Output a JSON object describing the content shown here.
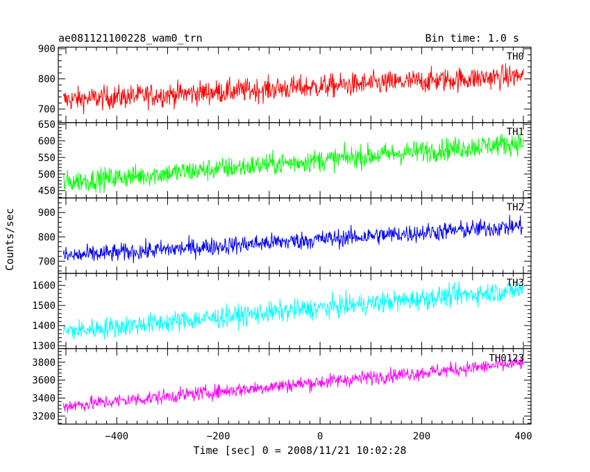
{
  "header": {
    "title": "ae081121100228_wam0_trn",
    "bin_time": "Bin time: 1.0 s"
  },
  "chart_data": {
    "type": "line",
    "xlabel": "Time [sec] 0 = 2008/11/21 10:02:28",
    "ylabel": "Counts/sec",
    "xlim": [
      -515,
      415
    ],
    "xticks": [
      -400,
      -200,
      0,
      200,
      400
    ],
    "xtick_labels": [
      "−400",
      "−200",
      "0",
      "200",
      "400"
    ],
    "x_step": 1.0,
    "x_start": -505,
    "x_end": 400,
    "panels": [
      {
        "name": "TH0",
        "color": "#ff0000",
        "ylim": [
          655,
          905
        ],
        "yticks": [
          700,
          800,
          900
        ],
        "trend": {
          "x": [
            -505,
            400
          ],
          "y": [
            730,
            810
          ]
        },
        "noise_amplitude": 28
      },
      {
        "name": "TH1",
        "color": "#00ff00",
        "ylim": [
          428,
          655
        ],
        "yticks": [
          450,
          500,
          550,
          600,
          650
        ],
        "trend": {
          "x": [
            -505,
            400
          ],
          "y": [
            475,
            595
          ]
        },
        "noise_amplitude": 24
      },
      {
        "name": "TH2",
        "color": "#0000ff",
        "ylim": [
          650,
          960
        ],
        "yticks": [
          700,
          800,
          900
        ],
        "trend": {
          "x": [
            -505,
            400
          ],
          "y": [
            720,
            845
          ]
        },
        "noise_amplitude": 27
      },
      {
        "name": "TH3",
        "color": "#00ffff",
        "ylim": [
          1285,
          1660
        ],
        "yticks": [
          1300,
          1400,
          1500,
          1600
        ],
        "trend": {
          "x": [
            -505,
            400
          ],
          "y": [
            1370,
            1580
          ]
        },
        "noise_amplitude": 38
      },
      {
        "name": "TH0123",
        "color": "#ff00ff",
        "ylim": [
          3110,
          3950
        ],
        "yticks": [
          3200,
          3400,
          3600,
          3800
        ],
        "trend": {
          "x": [
            -505,
            400
          ],
          "y": [
            3310,
            3790
          ]
        },
        "noise_amplitude": 58
      }
    ]
  }
}
